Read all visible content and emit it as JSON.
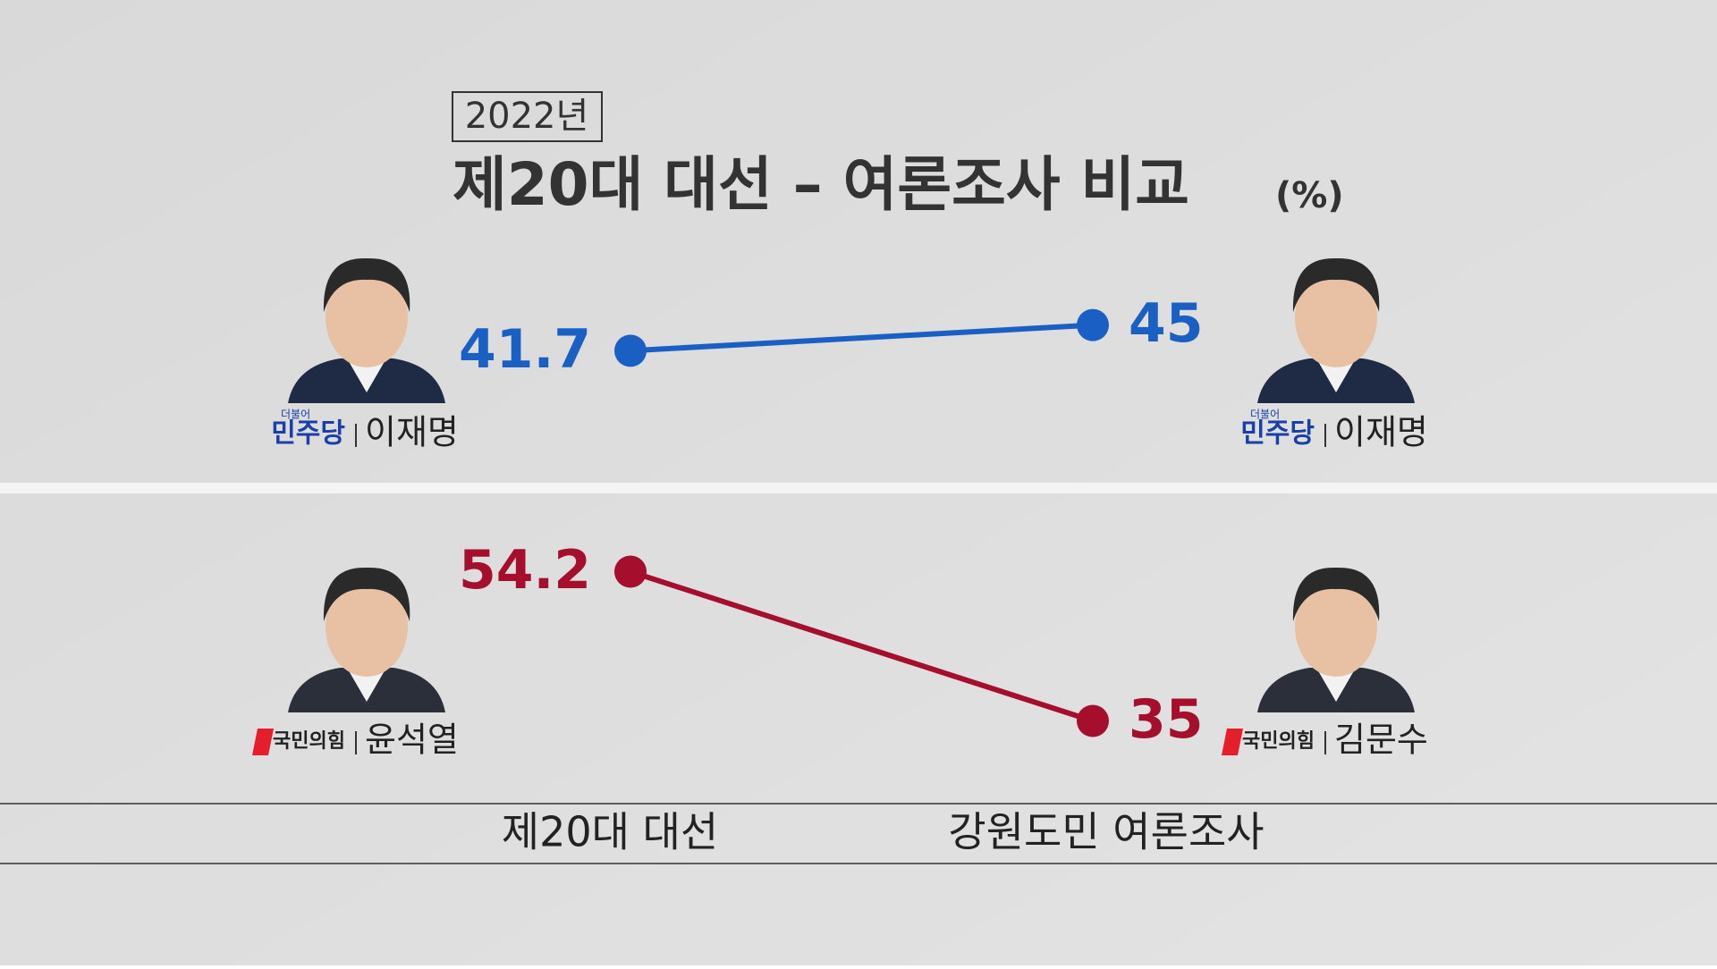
{
  "chart_data": {
    "type": "slope",
    "badge": "2022년",
    "title": "제20대 대선 – 여론조사 비교",
    "unit": "(%)",
    "categories": [
      "제20대 대선",
      "강원도민 여론조사"
    ],
    "series": [
      {
        "color": "#1a5fc4",
        "values": [
          41.7,
          45
        ],
        "party_small": "더불어",
        "party": "민주당",
        "candidates": [
          "이재명",
          "이재명"
        ]
      },
      {
        "color": "#a50f2d",
        "values": [
          54.2,
          35
        ],
        "party": "국민의힘",
        "candidates": [
          "윤석열",
          "김문수"
        ]
      }
    ]
  }
}
